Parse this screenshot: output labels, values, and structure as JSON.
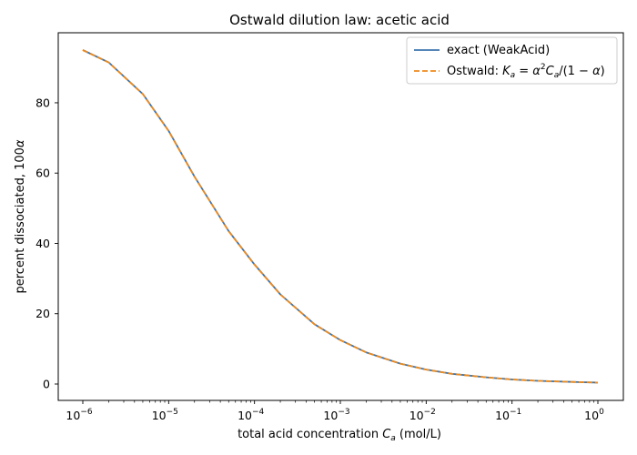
{
  "chart_data": {
    "type": "line",
    "title": "Ostwald dilution law: acetic acid",
    "xlabel": {
      "prefix": "total acid concentration ",
      "symbol": "C",
      "subscript": "a",
      "suffix": " (mol/L)"
    },
    "ylabel": {
      "prefix": "percent dissociated, 100",
      "symbol": "α"
    },
    "xscale": "log",
    "xlim": [
      1e-06,
      1
    ],
    "ylim": [
      0,
      95
    ],
    "x_ticks": [
      {
        "value": 1e-06,
        "base": "10",
        "exp": "−6"
      },
      {
        "value": 1e-05,
        "base": "10",
        "exp": "−5"
      },
      {
        "value": 0.0001,
        "base": "10",
        "exp": "−4"
      },
      {
        "value": 0.001,
        "base": "10",
        "exp": "−3"
      },
      {
        "value": 0.01,
        "base": "10",
        "exp": "−2"
      },
      {
        "value": 0.1,
        "base": "10",
        "exp": "−1"
      },
      {
        "value": 1,
        "base": "10",
        "exp": "0"
      }
    ],
    "y_ticks": [
      0,
      20,
      40,
      60,
      80
    ],
    "grid": false,
    "legend_position": "top-right",
    "series": [
      {
        "name": "exact (WeakAcid)",
        "color": "#3b75af",
        "style": "solid",
        "x": [
          1e-06,
          2e-06,
          5e-06,
          1e-05,
          2e-05,
          5e-05,
          0.0001,
          0.0002,
          0.0005,
          0.001,
          0.002,
          0.005,
          0.01,
          0.02,
          0.05,
          0.1,
          0.2,
          0.5,
          1
        ],
        "y": [
          95.0,
          91.5,
          82.5,
          72.0,
          59.0,
          43.5,
          34.0,
          25.5,
          17.0,
          12.5,
          9.0,
          5.8,
          4.1,
          2.9,
          1.9,
          1.3,
          0.9,
          0.6,
          0.4
        ]
      },
      {
        "name": "Ostwald: Ka = α²Ca/(1 − α)",
        "legend_math": {
          "prefix": "Ostwald: ",
          "k": "K",
          "ksub": "a",
          "eq": " = ",
          "alpha": "α",
          "sup": "2",
          "c": "C",
          "csub": "a",
          "rest": "/(1 − ",
          "alpha2": "α",
          "close": ")"
        },
        "color": "#ef8a1a",
        "style": "dashed",
        "x": [
          1e-06,
          2e-06,
          5e-06,
          1e-05,
          2e-05,
          5e-05,
          0.0001,
          0.0002,
          0.0005,
          0.001,
          0.002,
          0.005,
          0.01,
          0.02,
          0.05,
          0.1,
          0.2,
          0.5,
          1
        ],
        "y": [
          95.0,
          91.5,
          82.5,
          72.0,
          59.0,
          43.5,
          34.0,
          25.5,
          17.0,
          12.5,
          9.0,
          5.8,
          4.1,
          2.9,
          1.9,
          1.3,
          0.9,
          0.6,
          0.4
        ]
      }
    ]
  }
}
